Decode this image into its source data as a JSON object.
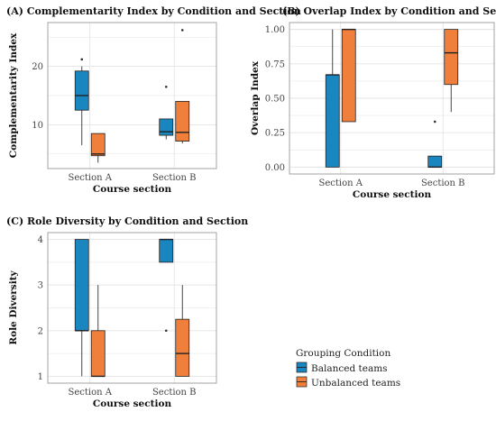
{
  "chart_data": [
    {
      "type": "boxplot",
      "title": "(A) Complementarity Index by Condition and Section",
      "xlabel": "Course section",
      "ylabel": "Complementarity Index",
      "categories": [
        "Section A",
        "Section B"
      ],
      "ylim": [
        2.5,
        27.5
      ],
      "yticks": [
        10,
        20
      ],
      "yticklabels": [
        "10",
        "20"
      ],
      "series": [
        {
          "name": "Balanced teams",
          "boxes": [
            {
              "category": "Section A",
              "min": 6.5,
              "q1": 12.5,
              "median": 15,
              "q3": 19.2,
              "max": 20,
              "outliers": [
                21.2
              ]
            },
            {
              "category": "Section B",
              "min": 7.5,
              "q1": 8.2,
              "median": 8.8,
              "q3": 11,
              "max": 11,
              "outliers": [
                16.5
              ]
            }
          ]
        },
        {
          "name": "Unbalanced teams",
          "boxes": [
            {
              "category": "Section A",
              "min": 3.5,
              "q1": 4.7,
              "median": 5,
              "q3": 8.5,
              "max": 8.5,
              "outliers": []
            },
            {
              "category": "Section B",
              "min": 6.8,
              "q1": 7.2,
              "median": 8.7,
              "q3": 14,
              "max": 14,
              "outliers": [
                26.2
              ]
            }
          ]
        }
      ]
    },
    {
      "type": "boxplot",
      "title": "(B) Overlap Index by Condition and Section",
      "xlabel": "Course section",
      "ylabel": "Overlap Index",
      "categories": [
        "Section A",
        "Section B"
      ],
      "ylim": [
        -0.05,
        1.05
      ],
      "yticks": [
        0,
        0.25,
        0.5,
        0.75,
        1
      ],
      "yticklabels": [
        "0.00",
        "0.25",
        "0.50",
        "0.75",
        "1.00"
      ],
      "series": [
        {
          "name": "Balanced teams",
          "boxes": [
            {
              "category": "Section A",
              "min": 0,
              "q1": 0,
              "median": 0.67,
              "q3": 0.67,
              "max": 1,
              "outliers": []
            },
            {
              "category": "Section B",
              "min": 0,
              "q1": 0,
              "median": 0,
              "q3": 0.08,
              "max": 0.08,
              "outliers": [
                0.33
              ]
            }
          ]
        },
        {
          "name": "Unbalanced teams",
          "boxes": [
            {
              "category": "Section A",
              "min": 0.33,
              "q1": 0.33,
              "median": 1,
              "q3": 1,
              "max": 1,
              "outliers": []
            },
            {
              "category": "Section B",
              "min": 0.4,
              "q1": 0.6,
              "median": 0.83,
              "q3": 1,
              "max": 1,
              "outliers": []
            }
          ]
        }
      ]
    },
    {
      "type": "boxplot",
      "title": "(C) Role Diversity by Condition and Section",
      "xlabel": "Course section",
      "ylabel": "Role Diversity",
      "categories": [
        "Section A",
        "Section B"
      ],
      "ylim": [
        0.85,
        4.15
      ],
      "yticks": [
        1,
        2,
        3,
        4
      ],
      "yticklabels": [
        "1",
        "2",
        "3",
        "4"
      ],
      "series": [
        {
          "name": "Balanced teams",
          "boxes": [
            {
              "category": "Section A",
              "min": 1,
              "q1": 2,
              "median": 2,
              "q3": 4,
              "max": 4,
              "outliers": []
            },
            {
              "category": "Section B",
              "min": 3.5,
              "q1": 3.5,
              "median": 4,
              "q3": 4,
              "max": 4,
              "outliers": [
                2
              ]
            }
          ]
        },
        {
          "name": "Unbalanced teams",
          "boxes": [
            {
              "category": "Section A",
              "min": 1,
              "q1": 1,
              "median": 1,
              "q3": 2,
              "max": 3,
              "outliers": []
            },
            {
              "category": "Section B",
              "min": 1,
              "q1": 1,
              "median": 1.5,
              "q3": 2.25,
              "max": 3,
              "outliers": []
            }
          ]
        }
      ]
    }
  ],
  "legend": {
    "title": "Grouping Condition",
    "items": [
      {
        "label": "Balanced teams",
        "color": "#1a86c0"
      },
      {
        "label": "Unbalanced teams",
        "color": "#f07f3c"
      }
    ]
  },
  "colors": {
    "balanced": "#1a86c0",
    "unbalanced": "#f07f3c",
    "grid": "#e3e3e3",
    "frame": "#9a9a9a"
  }
}
